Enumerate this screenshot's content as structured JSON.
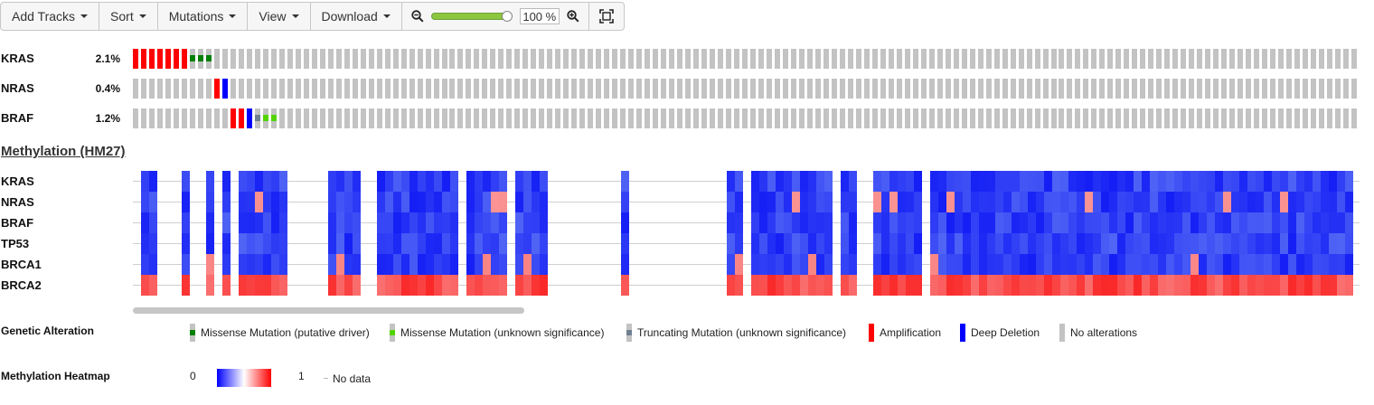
{
  "toolbar": {
    "add_tracks": "Add Tracks",
    "sort": "Sort",
    "mutations": "Mutations",
    "view": "View",
    "download": "Download",
    "zoom_value": "100 %",
    "zoom_level": 1.0,
    "zoom_out_icon": "zoom-out-icon",
    "zoom_in_icon": "zoom-in-icon",
    "fit_icon": "fit-to-screen-icon"
  },
  "genes": [
    {
      "name": "KRAS",
      "pct": "2.1%"
    },
    {
      "name": "NRAS",
      "pct": "0.4%"
    },
    {
      "name": "BRAF",
      "pct": "1.2%"
    }
  ],
  "colors": {
    "no_alteration": "#c3c3c3",
    "amplification": "#ff0000",
    "deep_deletion": "#0000ff",
    "missense_driver": "#008000",
    "missense_unknown": "#53d400",
    "truncating_unknown": "#708090"
  },
  "oncoprint": {
    "sample_count": 151,
    "KRAS": {
      "amplification": [
        0,
        1,
        2,
        3,
        4,
        5,
        6
      ],
      "missense_driver": [
        7,
        8,
        9
      ]
    },
    "NRAS": {
      "amplification": [
        10
      ],
      "deep_deletion": [
        11
      ]
    },
    "BRAF": {
      "amplification": [
        12,
        13
      ],
      "deep_deletion": [
        14
      ],
      "truncating_unknown": [
        15
      ],
      "missense_unknown": [
        16,
        17
      ]
    }
  },
  "methylation": {
    "section_title": "Methylation (HM27)",
    "rows": [
      "KRAS",
      "NRAS",
      "BRAF",
      "TP53",
      "BRCA1",
      "BRCA2"
    ]
  },
  "legend": {
    "genetic_title": "Genetic Alteration",
    "items": [
      {
        "label": "Missense Mutation (putative driver)",
        "color": "#008000"
      },
      {
        "label": "Missense Mutation (unknown significance)",
        "color": "#53d400"
      },
      {
        "label": "Truncating Mutation (unknown significance)",
        "color": "#708090"
      },
      {
        "label": "Amplification",
        "color": "#ff0000"
      },
      {
        "label": "Deep Deletion",
        "color": "#0000ff"
      },
      {
        "label": "No alterations",
        "color": "#c3c3c3"
      }
    ],
    "heatmap_title": "Methylation Heatmap",
    "heat_min": "0",
    "heat_max": "1",
    "no_data": "No data"
  }
}
